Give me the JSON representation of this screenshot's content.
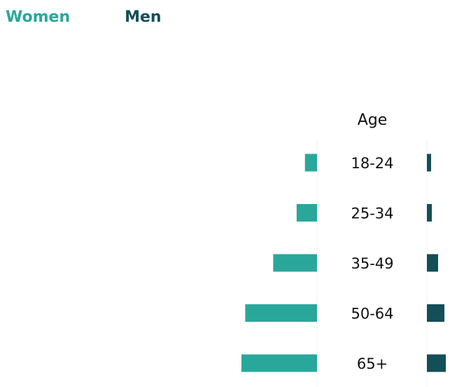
{
  "chart_data": {
    "type": "bar",
    "layout": "population-pyramid",
    "categories": [
      "18-24",
      "25-34",
      "35-49",
      "50-64",
      "65+"
    ],
    "center_label": "Age",
    "series": [
      {
        "name": "Women",
        "color": "#2aa79b",
        "values": [
          1.6,
          2.7,
          5.8,
          9.5,
          10.0
        ]
      },
      {
        "name": "Men",
        "color": "#134f57",
        "values": [
          0.6,
          0.7,
          1.6,
          2.5,
          2.7
        ]
      }
    ],
    "xlim": [
      0,
      10
    ],
    "grid": false,
    "legend_position": "top-left"
  }
}
